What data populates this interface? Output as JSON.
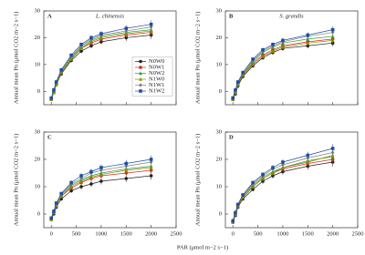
{
  "xlabel": "PAR (μmol m−2 s−1)",
  "chart_data": [
    {
      "type": "line",
      "label": "A",
      "title": "L. chinensis",
      "ylabel": "Annual mean Pn (μmol CO2 m−2 s−1)",
      "xlim": [
        -150,
        2500
      ],
      "ylim": [
        -5,
        30
      ],
      "xticks": [
        0,
        500,
        1000,
        1500,
        2000,
        2500
      ],
      "yticks": [
        0,
        10,
        20,
        30
      ],
      "xtick_labels": false,
      "legend": "right",
      "x": [
        0,
        50,
        100,
        200,
        400,
        600,
        800,
        1000,
        1500,
        2000
      ],
      "series": [
        {
          "name": "N0W0",
          "color": "#222222",
          "values": [
            -3,
            -0.5,
            2.5,
            6.5,
            11.5,
            15,
            17,
            18.5,
            20,
            21
          ],
          "errors": [
            0.3,
            0.3,
            0.4,
            0.5,
            0.6,
            0.8,
            1,
            1,
            1.2,
            1.5
          ]
        },
        {
          "name": "N0W1",
          "color": "#d62728",
          "values": [
            -3,
            0,
            3,
            7,
            12,
            16,
            18,
            19.5,
            21,
            22
          ],
          "errors": [
            0.3,
            0.3,
            0.4,
            0.5,
            0.6,
            0.8,
            1,
            1,
            1.2,
            1.5
          ]
        },
        {
          "name": "N0W2",
          "color": "#2ca02c",
          "values": [
            -2.5,
            0,
            3,
            7.5,
            12.5,
            16.5,
            19,
            20.5,
            22,
            23
          ],
          "errors": [
            0.3,
            0.3,
            0.4,
            0.5,
            0.6,
            0.8,
            1,
            1,
            1.2,
            1.5
          ]
        },
        {
          "name": "N1W0",
          "color": "#8b8b00",
          "values": [
            -3,
            -0.5,
            2.5,
            7,
            12,
            16,
            18.5,
            20,
            21.5,
            22.5
          ],
          "errors": [
            0.3,
            0.3,
            0.4,
            0.5,
            0.6,
            0.8,
            1,
            1,
            1.2,
            1.5
          ]
        },
        {
          "name": "N1W1",
          "color": "#7f7f7f",
          "values": [
            -2.5,
            0.5,
            3.5,
            8,
            13,
            17,
            19.5,
            21,
            22.5,
            24
          ],
          "errors": [
            0.3,
            0.3,
            0.4,
            0.5,
            0.6,
            0.8,
            1,
            1,
            1.2,
            1.5
          ]
        },
        {
          "name": "N1W2",
          "color": "#1f4e9e",
          "values": [
            -2.5,
            0.5,
            3.5,
            8,
            13.5,
            17.5,
            20,
            21.5,
            23.5,
            25
          ],
          "errors": [
            0.3,
            0.3,
            0.4,
            0.5,
            0.6,
            0.8,
            1,
            1,
            1.2,
            1.5
          ]
        }
      ]
    },
    {
      "type": "line",
      "label": "B",
      "title": "S. grandis",
      "ylabel": "Annual mean Pn (μmol CO2 m−2 s−1)",
      "xlim": [
        -150,
        2500
      ],
      "ylim": [
        -5,
        30
      ],
      "xticks": [
        0,
        500,
        1000,
        1500,
        2000,
        2500
      ],
      "yticks": [
        0,
        10,
        20,
        30
      ],
      "xtick_labels": false,
      "x": [
        0,
        50,
        100,
        200,
        400,
        600,
        800,
        1000,
        1500,
        2000
      ],
      "series": [
        {
          "color": "#222222",
          "values": [
            -3,
            -1,
            2,
            5.5,
            9.5,
            12.5,
            14.5,
            16,
            17,
            18
          ],
          "errors": [
            0.3,
            0.3,
            0.4,
            0.5,
            0.6,
            0.7,
            0.8,
            0.9,
            1,
            1.2
          ]
        },
        {
          "color": "#d62728",
          "values": [
            -3,
            -0.5,
            2.5,
            6,
            10.5,
            13.5,
            15.5,
            17,
            18.5,
            19.5
          ],
          "errors": [
            0.3,
            0.3,
            0.4,
            0.5,
            0.6,
            0.7,
            0.8,
            0.9,
            1,
            1.2
          ]
        },
        {
          "color": "#2ca02c",
          "values": [
            -2.5,
            0,
            3,
            6.5,
            11,
            14.5,
            16.5,
            18,
            19.5,
            20.5
          ],
          "errors": [
            0.3,
            0.3,
            0.4,
            0.5,
            0.6,
            0.7,
            0.8,
            0.9,
            1,
            1.2
          ]
        },
        {
          "color": "#8b8b00",
          "values": [
            -3,
            -0.5,
            2.5,
            6,
            10,
            13,
            15,
            16.5,
            18,
            19
          ],
          "errors": [
            0.3,
            0.3,
            0.4,
            0.5,
            0.6,
            0.7,
            0.8,
            0.9,
            1,
            1.2
          ]
        },
        {
          "color": "#7f7f7f",
          "values": [
            -2.5,
            0,
            3,
            7,
            11.5,
            15,
            17,
            18.5,
            20.5,
            22
          ],
          "errors": [
            0.3,
            0.3,
            0.4,
            0.5,
            0.6,
            0.7,
            0.8,
            0.9,
            1,
            1.2
          ]
        },
        {
          "color": "#1f4e9e",
          "values": [
            -2.5,
            0.5,
            3.5,
            7,
            12,
            15.5,
            17.5,
            19,
            21,
            23
          ],
          "errors": [
            0.3,
            0.3,
            0.4,
            0.5,
            0.6,
            0.7,
            0.8,
            0.9,
            1,
            1.2
          ]
        }
      ]
    },
    {
      "type": "line",
      "label": "C",
      "ylabel": "Annual mean Pn (μmol CO2 m−2 s−1)",
      "xlim": [
        -150,
        2500
      ],
      "ylim": [
        -5,
        30
      ],
      "xticks": [
        0,
        500,
        1000,
        1500,
        2000,
        2500
      ],
      "yticks": [
        0,
        10,
        20,
        30
      ],
      "xtick_labels": true,
      "x": [
        0,
        50,
        100,
        200,
        400,
        600,
        800,
        1000,
        1500,
        2000
      ],
      "series": [
        {
          "color": "#222222",
          "values": [
            -2,
            0,
            2.5,
            5.5,
            8.5,
            10,
            11,
            12,
            13,
            14
          ],
          "errors": [
            0.3,
            0.3,
            0.4,
            0.6,
            0.8,
            1,
            1.1,
            1.2,
            1.3,
            1.5
          ]
        },
        {
          "color": "#d62728",
          "values": [
            -2,
            0.5,
            3,
            6.5,
            9.5,
            11.5,
            13,
            14,
            15,
            16
          ],
          "errors": [
            0.3,
            0.3,
            0.4,
            0.6,
            0.8,
            1,
            1.1,
            1.2,
            1.3,
            1.5
          ]
        },
        {
          "color": "#2ca02c",
          "values": [
            -1.5,
            1,
            3.5,
            7,
            10.5,
            12.5,
            14,
            15,
            16.5,
            17.5
          ],
          "errors": [
            0.3,
            0.3,
            0.4,
            0.6,
            0.8,
            1,
            1.1,
            1.2,
            1.3,
            1.5
          ]
        },
        {
          "color": "#8b8b00",
          "values": [
            -2,
            0.5,
            3,
            6.5,
            10,
            12,
            13.5,
            14.5,
            16,
            17
          ],
          "errors": [
            0.3,
            0.3,
            0.4,
            0.6,
            0.8,
            1,
            1.1,
            1.2,
            1.3,
            1.5
          ]
        },
        {
          "color": "#7f7f7f",
          "values": [
            -1.5,
            1,
            3.5,
            7,
            11,
            13,
            15,
            16,
            17.5,
            19
          ],
          "errors": [
            0.3,
            0.3,
            0.4,
            0.6,
            0.8,
            1,
            1.1,
            1.2,
            1.3,
            1.5
          ]
        },
        {
          "color": "#1f4e9e",
          "values": [
            -1.5,
            1,
            4,
            7.5,
            11.5,
            14,
            15.5,
            17,
            18.5,
            20
          ],
          "errors": [
            0.3,
            0.3,
            0.4,
            0.6,
            0.8,
            1,
            1.1,
            1.2,
            1.3,
            1.5
          ]
        }
      ]
    },
    {
      "type": "line",
      "label": "D",
      "ylabel": "Annual mean Pn (μmol CO2 m−2 s−1)",
      "xlim": [
        -150,
        2500
      ],
      "ylim": [
        -5,
        30
      ],
      "xticks": [
        0,
        500,
        1000,
        1500,
        2000,
        2500
      ],
      "yticks": [
        0,
        10,
        20,
        30
      ],
      "xtick_labels": true,
      "x": [
        0,
        50,
        100,
        200,
        400,
        600,
        800,
        1000,
        1500,
        2000
      ],
      "series": [
        {
          "color": "#222222",
          "values": [
            -3,
            -0.5,
            2.5,
            5.5,
            9,
            12,
            14,
            15.5,
            17.5,
            19
          ],
          "errors": [
            0.3,
            0.3,
            0.4,
            0.5,
            0.7,
            0.9,
            1,
            1.1,
            1.3,
            1.6
          ]
        },
        {
          "color": "#d62728",
          "values": [
            -3,
            0,
            3,
            6,
            10,
            13,
            15,
            16.5,
            18.5,
            20
          ],
          "errors": [
            0.3,
            0.3,
            0.4,
            0.5,
            0.7,
            0.9,
            1,
            1.1,
            1.3,
            1.6
          ]
        },
        {
          "color": "#2ca02c",
          "values": [
            -2.5,
            0,
            3,
            6.5,
            10.5,
            13.5,
            15.5,
            17,
            19.5,
            21
          ],
          "errors": [
            0.3,
            0.3,
            0.4,
            0.5,
            0.7,
            0.9,
            1,
            1.1,
            1.3,
            1.6
          ]
        },
        {
          "color": "#8b8b00",
          "values": [
            -3,
            0,
            3,
            6,
            10,
            13,
            15,
            17,
            19,
            21.5
          ],
          "errors": [
            0.3,
            0.3,
            0.4,
            0.5,
            0.7,
            0.9,
            1,
            1.1,
            1.3,
            1.6
          ]
        },
        {
          "color": "#7f7f7f",
          "values": [
            -2.5,
            0.5,
            3.5,
            7,
            11,
            14,
            16.5,
            18,
            20.5,
            22.5
          ],
          "errors": [
            0.3,
            0.3,
            0.4,
            0.5,
            0.7,
            0.9,
            1,
            1.1,
            1.3,
            1.6
          ]
        },
        {
          "color": "#1f4e9e",
          "values": [
            -2.5,
            0.5,
            3.5,
            7,
            11.5,
            14.5,
            17,
            19,
            21.5,
            24
          ],
          "errors": [
            0.3,
            0.3,
            0.4,
            0.5,
            0.7,
            0.9,
            1,
            1.1,
            1.3,
            1.6
          ]
        }
      ]
    }
  ]
}
